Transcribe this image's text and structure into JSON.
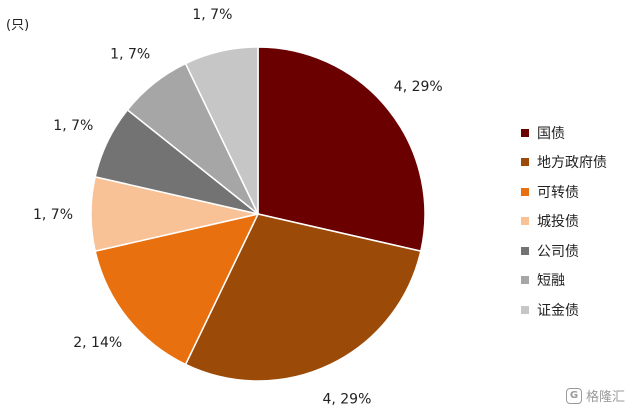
{
  "unit_label": "(只)",
  "watermark": "格隆汇",
  "colors": [
    "#6b0000",
    "#9b4a08",
    "#e8700f",
    "#f8c296",
    "#737373",
    "#a6a6a6",
    "#c6c6c6"
  ],
  "chart_data": {
    "type": "pie",
    "start_angle_deg": 0,
    "direction": "clockwise",
    "legend_position": "right",
    "slices": [
      {
        "name": "国债",
        "value": 4,
        "label": "4, 29%"
      },
      {
        "name": "地方政府债",
        "value": 4,
        "label": "4, 29%"
      },
      {
        "name": "可转债",
        "value": 2,
        "label": "2, 14%"
      },
      {
        "name": "城投债",
        "value": 1,
        "label": "1, 7%"
      },
      {
        "name": "公司债",
        "value": 1,
        "label": "1, 7%"
      },
      {
        "name": "短融",
        "value": 1,
        "label": "1, 7%"
      },
      {
        "name": "证金债",
        "value": 1,
        "label": "1, 7%"
      }
    ]
  }
}
